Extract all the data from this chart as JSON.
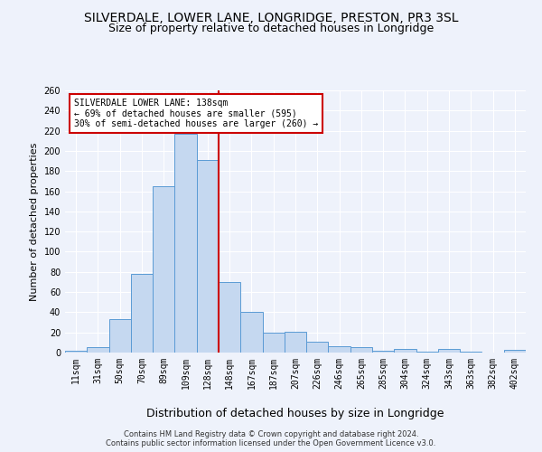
{
  "title": "SILVERDALE, LOWER LANE, LONGRIDGE, PRESTON, PR3 3SL",
  "subtitle": "Size of property relative to detached houses in Longridge",
  "xlabel": "Distribution of detached houses by size in Longridge",
  "ylabel": "Number of detached properties",
  "categories": [
    "11sqm",
    "31sqm",
    "50sqm",
    "70sqm",
    "89sqm",
    "109sqm",
    "128sqm",
    "148sqm",
    "167sqm",
    "187sqm",
    "207sqm",
    "226sqm",
    "246sqm",
    "265sqm",
    "285sqm",
    "304sqm",
    "324sqm",
    "343sqm",
    "363sqm",
    "382sqm",
    "402sqm"
  ],
  "values": [
    2,
    5,
    33,
    78,
    165,
    217,
    191,
    70,
    40,
    20,
    21,
    11,
    6,
    5,
    2,
    4,
    1,
    4,
    1,
    0,
    3
  ],
  "bar_color": "#c5d8f0",
  "bar_edge_color": "#5b9bd5",
  "vline_color": "#cc0000",
  "vline_x": 6.5,
  "annotation_line1": "SILVERDALE LOWER LANE: 138sqm",
  "annotation_line2": "← 69% of detached houses are smaller (595)",
  "annotation_line3": "30% of semi-detached houses are larger (260) →",
  "annotation_box_facecolor": "#ffffff",
  "annotation_box_edgecolor": "#cc0000",
  "background_color": "#eef2fb",
  "grid_color": "#ffffff",
  "title_fontsize": 10,
  "subtitle_fontsize": 9,
  "ylabel_fontsize": 8,
  "xlabel_fontsize": 9,
  "tick_fontsize": 7,
  "annotation_fontsize": 7,
  "footer_text": "Contains HM Land Registry data © Crown copyright and database right 2024.\nContains public sector information licensed under the Open Government Licence v3.0.",
  "footer_fontsize": 6,
  "ylim_max": 260,
  "ytick_step": 20
}
